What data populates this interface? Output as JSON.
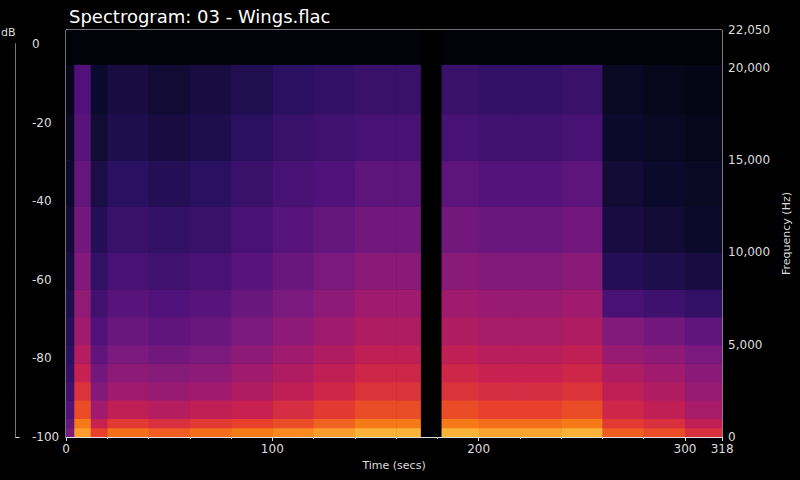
{
  "chart_data": {
    "type": "heatmap",
    "title": "Spectrogram: 03 - Wings.flac",
    "x_label": "Time (secs)",
    "y_label": "Frequency (Hz)",
    "xlim": [
      0,
      318
    ],
    "xticks": [
      0,
      100,
      200,
      300
    ],
    "ylim": [
      0,
      22050
    ],
    "yticks": [
      0,
      5000,
      10000,
      15000,
      20000
    ],
    "x_bins": [
      0,
      4,
      12,
      20,
      40,
      60,
      80,
      100,
      120,
      140,
      160,
      172,
      182,
      200,
      220,
      240,
      260,
      280,
      300,
      318
    ],
    "y_bins": [
      0,
      500,
      1000,
      2000,
      3000,
      4000,
      5000,
      6500,
      8000,
      10000,
      12500,
      15000,
      17500,
      20200,
      22050
    ],
    "cells": [
      [
        -60,
        -15,
        -30,
        -22,
        -25,
        -22,
        -20,
        -18,
        -15,
        -12,
        -12,
        -100,
        -12,
        -14,
        -14,
        -12,
        -25,
        -28,
        -35
      ],
      [
        -65,
        -20,
        -40,
        -32,
        -35,
        -32,
        -30,
        -28,
        -24,
        -20,
        -20,
        -100,
        -20,
        -22,
        -22,
        -20,
        -32,
        -35,
        -42
      ],
      [
        -70,
        -28,
        -50,
        -42,
        -45,
        -42,
        -40,
        -36,
        -32,
        -28,
        -28,
        -100,
        -28,
        -30,
        -30,
        -28,
        -38,
        -42,
        -48
      ],
      [
        -75,
        -34,
        -58,
        -50,
        -52,
        -50,
        -46,
        -42,
        -38,
        -34,
        -34,
        -100,
        -34,
        -36,
        -36,
        -34,
        -42,
        -46,
        -52
      ],
      [
        -78,
        -40,
        -62,
        -55,
        -57,
        -55,
        -50,
        -46,
        -42,
        -38,
        -38,
        -100,
        -38,
        -40,
        -40,
        -38,
        -46,
        -50,
        -56
      ],
      [
        -80,
        -45,
        -66,
        -60,
        -62,
        -60,
        -55,
        -50,
        -46,
        -42,
        -42,
        -100,
        -42,
        -44,
        -44,
        -42,
        -52,
        -55,
        -60
      ],
      [
        -82,
        -50,
        -70,
        -64,
        -66,
        -64,
        -60,
        -55,
        -50,
        -46,
        -46,
        -100,
        -46,
        -48,
        -48,
        -46,
        -58,
        -62,
        -66
      ],
      [
        -84,
        -54,
        -74,
        -68,
        -70,
        -68,
        -64,
        -60,
        -55,
        -50,
        -50,
        -100,
        -50,
        -52,
        -52,
        -50,
        -72,
        -75,
        -78
      ],
      [
        -86,
        -58,
        -78,
        -72,
        -74,
        -72,
        -68,
        -64,
        -60,
        -56,
        -56,
        -100,
        -56,
        -58,
        -58,
        -56,
        -82,
        -84,
        -86
      ],
      [
        -88,
        -62,
        -82,
        -76,
        -78,
        -76,
        -72,
        -68,
        -65,
        -62,
        -62,
        -100,
        -62,
        -64,
        -64,
        -62,
        -86,
        -88,
        -90
      ],
      [
        -90,
        -65,
        -85,
        -80,
        -82,
        -80,
        -76,
        -72,
        -70,
        -67,
        -67,
        -100,
        -67,
        -69,
        -69,
        -67,
        -88,
        -90,
        -92
      ],
      [
        -92,
        -68,
        -88,
        -84,
        -86,
        -84,
        -80,
        -76,
        -74,
        -72,
        -72,
        -100,
        -72,
        -74,
        -74,
        -72,
        -90,
        -92,
        -94
      ],
      [
        -94,
        -70,
        -90,
        -86,
        -88,
        -86,
        -83,
        -80,
        -78,
        -76,
        -76,
        -100,
        -76,
        -78,
        -78,
        -76,
        -92,
        -94,
        -95
      ],
      [
        -98,
        -98,
        -98,
        -98,
        -98,
        -98,
        -98,
        -98,
        -98,
        -98,
        -98,
        -100,
        -98,
        -98,
        -98,
        -98,
        -98,
        -98,
        -98
      ]
    ],
    "colorbar": {
      "label": "dB",
      "range": [
        -100,
        0
      ],
      "ticks": [
        -100,
        -80,
        -60,
        -40,
        -20,
        0
      ]
    }
  }
}
